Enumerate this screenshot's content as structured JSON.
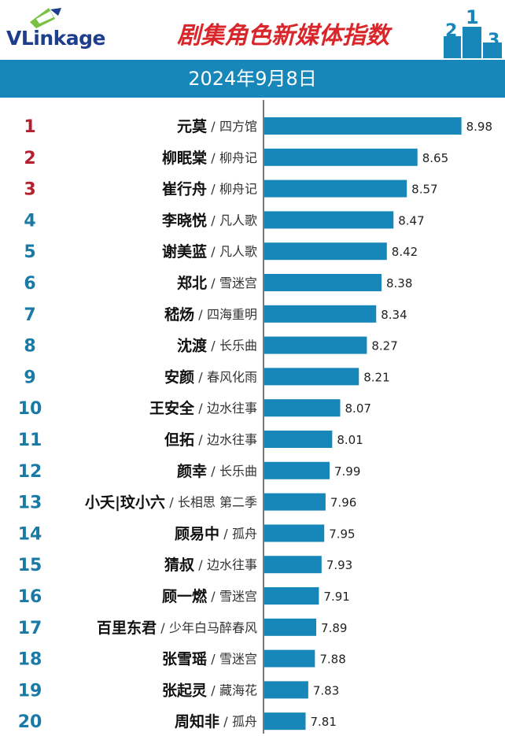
{
  "brand": {
    "name": "VLinkage"
  },
  "title": "剧集角色新媒体指数",
  "date": "2024年9月8日",
  "podium": [
    "2",
    "1",
    "3"
  ],
  "colors": {
    "bar": "#1787b9",
    "header_bar": "#1787b9",
    "title": "#d9262a",
    "rank_top3": "#b5202e",
    "rank_rest": "#1a7aa6",
    "logo": "#1e3d8c"
  },
  "chart_data": {
    "type": "bar",
    "orientation": "horizontal",
    "title": "剧集角色新媒体指数",
    "subtitle": "2024年9月8日",
    "xlim": [
      7.5,
      9.0
    ],
    "grid": false,
    "legend": "none",
    "rows": [
      {
        "rank": "1",
        "name": "元莫",
        "show": "四方馆",
        "value": 8.98
      },
      {
        "rank": "2",
        "name": "柳眠棠",
        "show": "柳舟记",
        "value": 8.65
      },
      {
        "rank": "3",
        "name": "崔行舟",
        "show": "柳舟记",
        "value": 8.57
      },
      {
        "rank": "4",
        "name": "李晓悦",
        "show": "凡人歌",
        "value": 8.47
      },
      {
        "rank": "5",
        "name": "谢美蓝",
        "show": "凡人歌",
        "value": 8.42
      },
      {
        "rank": "6",
        "name": "郑北",
        "show": "雪迷宫",
        "value": 8.38
      },
      {
        "rank": "7",
        "name": "嵇炀",
        "show": "四海重明",
        "value": 8.34
      },
      {
        "rank": "8",
        "name": "沈渡",
        "show": "长乐曲",
        "value": 8.27
      },
      {
        "rank": "9",
        "name": "安颜",
        "show": "春风化雨",
        "value": 8.21
      },
      {
        "rank": "10",
        "name": "王安全",
        "show": "边水往事",
        "value": 8.07
      },
      {
        "rank": "11",
        "name": "但拓",
        "show": "边水往事",
        "value": 8.01
      },
      {
        "rank": "12",
        "name": "颜幸",
        "show": "长乐曲",
        "value": 7.99
      },
      {
        "rank": "13",
        "name": "小夭|玟小六",
        "show": "长相思 第二季",
        "value": 7.96
      },
      {
        "rank": "14",
        "name": "顾易中",
        "show": "孤舟",
        "value": 7.95
      },
      {
        "rank": "15",
        "name": "猜叔",
        "show": "边水往事",
        "value": 7.93
      },
      {
        "rank": "16",
        "name": "顾一燃",
        "show": "雪迷宫",
        "value": 7.91
      },
      {
        "rank": "17",
        "name": "百里东君",
        "show": "少年白马醉春风",
        "value": 7.89
      },
      {
        "rank": "18",
        "name": "张雪瑶",
        "show": "雪迷宫",
        "value": 7.88
      },
      {
        "rank": "19",
        "name": "张起灵",
        "show": "藏海花",
        "value": 7.83
      },
      {
        "rank": "20",
        "name": "周知非",
        "show": "孤舟",
        "value": 7.81
      }
    ]
  }
}
